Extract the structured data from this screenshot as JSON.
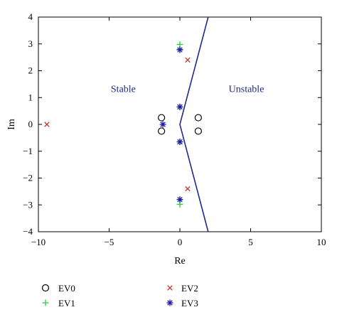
{
  "chart_data": {
    "type": "scatter",
    "xlabel": "Re",
    "ylabel": "Im",
    "xlim": [
      -10,
      10
    ],
    "ylim": [
      -4,
      4
    ],
    "xticks": [
      -10,
      -5,
      0,
      5,
      10
    ],
    "yticks": [
      -4,
      -3,
      -2,
      -1,
      0,
      1,
      2,
      3,
      4
    ],
    "grid": false,
    "legend_position": "below",
    "regions": [
      {
        "label": "Stable",
        "x": -4,
        "y": 1.2
      },
      {
        "label": "Unstable",
        "x": 4.7,
        "y": 1.2
      }
    ],
    "boundary": {
      "color": "#1f2a8c",
      "x": [
        2.0,
        0.0,
        2.0
      ],
      "y": [
        4.0,
        0.0,
        -4.0
      ]
    },
    "series": [
      {
        "name": "EV0",
        "marker": "circle",
        "color": "#000000",
        "x": [
          -1.3,
          -1.3,
          1.3,
          1.3
        ],
        "y": [
          0.25,
          -0.25,
          0.25,
          -0.25
        ]
      },
      {
        "name": "EV1",
        "marker": "plus",
        "color": "#2ecc40",
        "x": [
          0.0,
          0.0,
          0.0,
          0.0,
          0.0,
          0.0
        ],
        "y": [
          2.98,
          -2.98,
          0.65,
          -0.65,
          2.8,
          -2.8
        ]
      },
      {
        "name": "EV2",
        "marker": "x",
        "color": "#c0392b",
        "x": [
          -9.4,
          0.55,
          0.55,
          0.0,
          0.0
        ],
        "y": [
          0.0,
          2.4,
          -2.4,
          0.65,
          -0.65
        ]
      },
      {
        "name": "EV3",
        "marker": "asterisk",
        "color": "#1a1aa8",
        "x": [
          -1.2,
          0.0,
          0.0,
          0.0,
          0.0
        ],
        "y": [
          0.0,
          0.65,
          -0.65,
          2.78,
          -2.8
        ]
      }
    ]
  }
}
